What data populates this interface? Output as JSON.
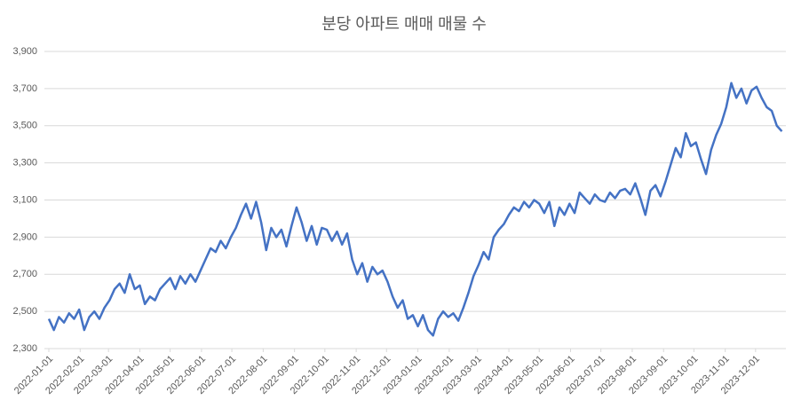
{
  "chart_data": {
    "type": "line",
    "title": "분당 아파트 매매 매물 수",
    "color": "#4472c4",
    "grid": true,
    "x": [
      "2022-01-01",
      "2022-01-06",
      "2022-01-11",
      "2022-01-16",
      "2022-01-21",
      "2022-01-26",
      "2022-01-31",
      "2022-02-05",
      "2022-02-10",
      "2022-02-15",
      "2022-02-20",
      "2022-02-25",
      "2022-03-02",
      "2022-03-07",
      "2022-03-12",
      "2022-03-17",
      "2022-03-22",
      "2022-03-27",
      "2022-04-01",
      "2022-04-06",
      "2022-04-11",
      "2022-04-16",
      "2022-04-21",
      "2022-04-26",
      "2022-05-01",
      "2022-05-06",
      "2022-05-11",
      "2022-05-16",
      "2022-05-21",
      "2022-05-26",
      "2022-05-31",
      "2022-06-05",
      "2022-06-10",
      "2022-06-15",
      "2022-06-20",
      "2022-06-25",
      "2022-06-30",
      "2022-07-05",
      "2022-07-10",
      "2022-07-15",
      "2022-07-20",
      "2022-07-25",
      "2022-07-30",
      "2022-08-04",
      "2022-08-09",
      "2022-08-14",
      "2022-08-19",
      "2022-08-24",
      "2022-08-29",
      "2022-09-03",
      "2022-09-08",
      "2022-09-13",
      "2022-09-18",
      "2022-09-23",
      "2022-09-28",
      "2022-10-03",
      "2022-10-08",
      "2022-10-13",
      "2022-10-18",
      "2022-10-23",
      "2022-10-28",
      "2022-11-02",
      "2022-11-07",
      "2022-11-12",
      "2022-11-17",
      "2022-11-22",
      "2022-11-27",
      "2022-12-02",
      "2022-12-07",
      "2022-12-12",
      "2022-12-17",
      "2022-12-22",
      "2022-12-27",
      "2023-01-01",
      "2023-01-06",
      "2023-01-11",
      "2023-01-16",
      "2023-01-21",
      "2023-01-26",
      "2023-01-31",
      "2023-02-05",
      "2023-02-10",
      "2023-02-15",
      "2023-02-20",
      "2023-02-25",
      "2023-03-02",
      "2023-03-07",
      "2023-03-12",
      "2023-03-17",
      "2023-03-22",
      "2023-03-27",
      "2023-04-01",
      "2023-04-06",
      "2023-04-11",
      "2023-04-16",
      "2023-04-21",
      "2023-04-26",
      "2023-05-01",
      "2023-05-06",
      "2023-05-11",
      "2023-05-16",
      "2023-05-21",
      "2023-05-26",
      "2023-05-31",
      "2023-06-05",
      "2023-06-10",
      "2023-06-15",
      "2023-06-20",
      "2023-06-25",
      "2023-06-30",
      "2023-07-05",
      "2023-07-10",
      "2023-07-15",
      "2023-07-20",
      "2023-07-25",
      "2023-07-30",
      "2023-08-04",
      "2023-08-09",
      "2023-08-14",
      "2023-08-19",
      "2023-08-24",
      "2023-08-29",
      "2023-09-03",
      "2023-09-08",
      "2023-09-13",
      "2023-09-18",
      "2023-09-23",
      "2023-09-28",
      "2023-10-03",
      "2023-10-08",
      "2023-10-13",
      "2023-10-18",
      "2023-10-23",
      "2023-10-28",
      "2023-11-02",
      "2023-11-07",
      "2023-11-12",
      "2023-11-17",
      "2023-11-22",
      "2023-11-27",
      "2023-12-02",
      "2023-12-07",
      "2023-12-12",
      "2023-12-17",
      "2023-12-22",
      "2023-12-27"
    ],
    "values": [
      2460,
      2400,
      2470,
      2440,
      2490,
      2460,
      2510,
      2400,
      2470,
      2500,
      2460,
      2520,
      2560,
      2620,
      2650,
      2600,
      2700,
      2620,
      2640,
      2540,
      2580,
      2560,
      2620,
      2650,
      2680,
      2620,
      2690,
      2650,
      2700,
      2660,
      2720,
      2780,
      2840,
      2820,
      2880,
      2840,
      2900,
      2950,
      3020,
      3080,
      3000,
      3090,
      2980,
      2830,
      2950,
      2900,
      2940,
      2850,
      2960,
      3060,
      2980,
      2880,
      2960,
      2860,
      2950,
      2940,
      2880,
      2930,
      2860,
      2920,
      2780,
      2700,
      2760,
      2660,
      2740,
      2700,
      2720,
      2660,
      2580,
      2520,
      2560,
      2460,
      2480,
      2420,
      2480,
      2400,
      2370,
      2460,
      2500,
      2470,
      2490,
      2450,
      2520,
      2600,
      2690,
      2750,
      2820,
      2780,
      2900,
      2940,
      2970,
      3020,
      3060,
      3040,
      3090,
      3060,
      3100,
      3080,
      3030,
      3090,
      2960,
      3060,
      3020,
      3080,
      3030,
      3140,
      3110,
      3080,
      3130,
      3100,
      3090,
      3140,
      3110,
      3150,
      3160,
      3130,
      3190,
      3110,
      3020,
      3150,
      3180,
      3120,
      3200,
      3290,
      3380,
      3330,
      3460,
      3390,
      3410,
      3320,
      3240,
      3370,
      3450,
      3510,
      3600,
      3730,
      3650,
      3700,
      3620,
      3690,
      3710,
      3650,
      3600,
      3580,
      3500,
      3470
    ],
    "xlim": [
      "2022-01-01",
      "2023-12-31"
    ],
    "xticks": [
      "2022-01-01",
      "2022-02-01",
      "2022-03-01",
      "2022-04-01",
      "2022-05-01",
      "2022-06-01",
      "2022-07-01",
      "2022-08-01",
      "2022-09-01",
      "2022-10-01",
      "2022-11-01",
      "2022-12-01",
      "2023-01-01",
      "2023-02-01",
      "2023-03-01",
      "2023-04-01",
      "2023-05-01",
      "2023-06-01",
      "2023-07-01",
      "2023-08-01",
      "2023-09-01",
      "2023-10-01",
      "2023-11-01",
      "2023-12-01"
    ],
    "ylim": [
      2300,
      3900
    ],
    "yticks": [
      {
        "value": 2300,
        "label": "2,300"
      },
      {
        "value": 2500,
        "label": "2,500"
      },
      {
        "value": 2700,
        "label": "2,700"
      },
      {
        "value": 2900,
        "label": "2,900"
      },
      {
        "value": 3100,
        "label": "3,100"
      },
      {
        "value": 3300,
        "label": "3,300"
      },
      {
        "value": 3500,
        "label": "3,500"
      },
      {
        "value": 3700,
        "label": "3,700"
      },
      {
        "value": 3900,
        "label": "3,900"
      }
    ]
  }
}
